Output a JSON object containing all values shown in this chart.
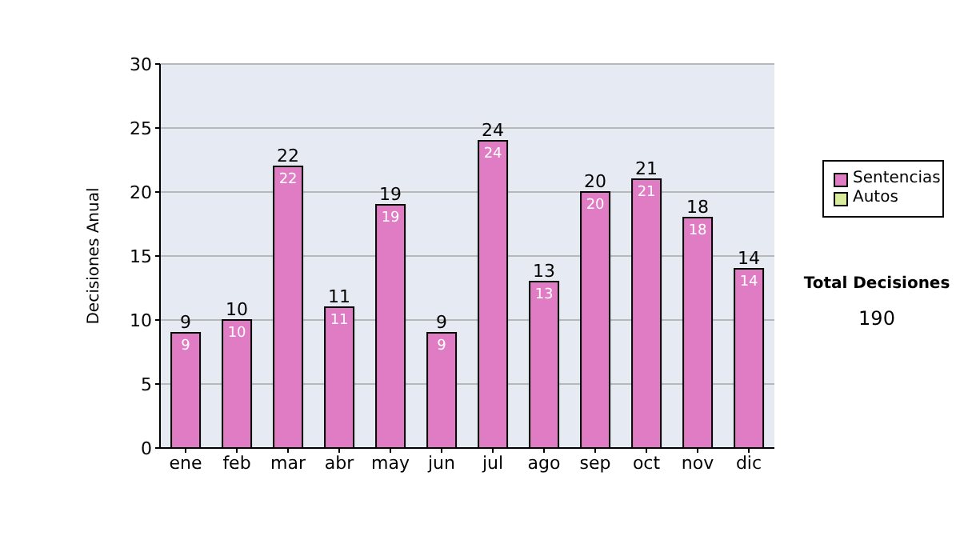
{
  "chart_data": {
    "type": "bar",
    "stacked": true,
    "ylabel": "Decisiones Anual",
    "categories": [
      "ene",
      "feb",
      "mar",
      "abr",
      "may",
      "jun",
      "jul",
      "ago",
      "sep",
      "oct",
      "nov",
      "dic"
    ],
    "series": [
      {
        "name": "Sentencias",
        "color": "#e07cc4",
        "values": [
          9,
          10,
          22,
          11,
          19,
          9,
          24,
          13,
          20,
          21,
          18,
          14
        ],
        "value_labels": [
          "9",
          "10",
          "22",
          "11",
          "19",
          "9",
          "24",
          "13",
          "20",
          "21",
          "18",
          "14"
        ]
      },
      {
        "name": "Autos",
        "color": "#d8ec9c",
        "values": [
          0,
          0,
          0,
          0,
          0,
          0,
          0,
          0,
          0,
          0,
          0,
          0
        ]
      }
    ],
    "totals": [
      "9",
      "10",
      "22",
      "11",
      "19",
      "9",
      "24",
      "13",
      "20",
      "21",
      "18",
      "14"
    ],
    "ylim": [
      0,
      30
    ],
    "yticks": [
      0,
      5,
      10,
      15,
      20,
      25,
      30
    ],
    "grid": "y",
    "legend": "right",
    "annotations": [
      "Total Decisiones",
      "190"
    ]
  }
}
